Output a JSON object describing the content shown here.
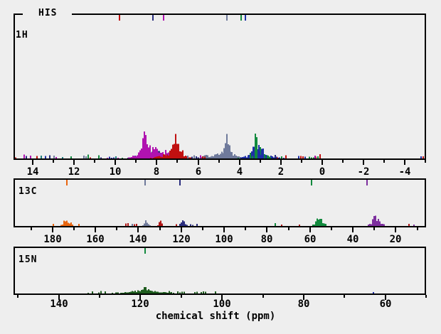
{
  "figure": {
    "title": "HIS",
    "xlabel": "chemical shift (ppm)"
  },
  "colors": {
    "bg": "#eeeeee",
    "axis": "#000000",
    "magenta": "#b012b0",
    "red": "#c01010",
    "red13": "#b01616",
    "navy": "#2a2d7e",
    "blue": "#1e2fa6",
    "slate": "#6f7a9b",
    "green": "#128a3e",
    "dgreen": "#1e5c1e",
    "teal": "#1f7d7d",
    "orange": "#e8650f",
    "purple": "#7d2f9e"
  },
  "chart_data": [
    {
      "type": "histogram",
      "nucleus_label": "1H",
      "x_axis": {
        "range": [
          14.9,
          -5.0
        ],
        "tick_min": -5,
        "tick_max": 14,
        "tick_step": 1,
        "label_step": 2,
        "labels": [
          14,
          12,
          10,
          8,
          6,
          4,
          2,
          0,
          -2,
          -4
        ]
      },
      "avg_markers": [
        {
          "ppm": 9.8,
          "color": "red"
        },
        {
          "ppm": 8.18,
          "color": "navy"
        },
        {
          "ppm": 7.66,
          "color": "magenta"
        },
        {
          "ppm": 4.62,
          "color": "slate"
        },
        {
          "ppm": 3.93,
          "color": "green"
        },
        {
          "ppm": 3.72,
          "color": "blue"
        }
      ],
      "clusters": [
        {
          "color": "navy",
          "center": 8.25,
          "sigma": 0.55,
          "height": 12
        },
        {
          "color": "magenta",
          "center": 8.4,
          "sigma": 0.45,
          "height": 20
        },
        {
          "color": "magenta",
          "center": 8.62,
          "sigma": 0.16,
          "height": 34
        },
        {
          "color": "magenta",
          "center": 8.59,
          "sigma": 0.06,
          "height": 50
        },
        {
          "color": "magenta",
          "center": 7.65,
          "sigma": 0.35,
          "height": 13
        },
        {
          "color": "red",
          "center": 7.35,
          "sigma": 0.55,
          "height": 7
        },
        {
          "color": "red",
          "center": 7.1,
          "sigma": 0.3,
          "height": 22
        },
        {
          "color": "red",
          "center": 7.08,
          "sigma": 0.1,
          "height": 44
        },
        {
          "color": "slate",
          "center": 5.55,
          "sigma": 0.35,
          "height": 5
        },
        {
          "color": "slate",
          "center": 4.7,
          "sigma": 0.4,
          "height": 13
        },
        {
          "color": "slate",
          "center": 4.63,
          "sigma": 0.14,
          "height": 34
        },
        {
          "color": "blue",
          "center": 3.05,
          "sigma": 0.55,
          "height": 8,
          "mix": {
            "color": "green",
            "prob": 0.25,
            "scale": 0.8
          }
        },
        {
          "color": "blue",
          "center": 3.15,
          "sigma": 0.28,
          "height": 22,
          "mix": {
            "color": "green",
            "prob": 0.3,
            "scale": 0.9
          }
        },
        {
          "color": "blue",
          "center": 3.2,
          "sigma": 0.11,
          "height": 42,
          "mix": {
            "color": "green",
            "prob": 0.25,
            "scale": 0.95
          }
        }
      ],
      "noise": [
        {
          "range": [
            14.85,
            9.6
          ],
          "maxh": 4.5,
          "density": 0.42,
          "colors": [
            "navy",
            "blue",
            "red",
            "green",
            "magenta",
            "teal",
            "slate"
          ]
        },
        {
          "range": [
            6.55,
            5.6
          ],
          "maxh": 4,
          "density": 0.5,
          "colors": [
            "slate",
            "red",
            "navy",
            "magenta"
          ]
        },
        {
          "range": [
            2.3,
            0.15
          ],
          "maxh": 4,
          "density": 0.45,
          "colors": [
            "red",
            "magenta",
            "blue",
            "green",
            "navy"
          ]
        }
      ],
      "extra_bars": [
        {
          "ppm": 0.1,
          "h": 6,
          "color": "red"
        },
        {
          "ppm": 0.35,
          "h": 4,
          "color": "magenta"
        },
        {
          "ppm": -4.78,
          "h": 3,
          "color": "blue"
        },
        {
          "ppm": -4.9,
          "h": 3,
          "color": "red"
        }
      ]
    },
    {
      "type": "histogram",
      "nucleus_label": "13C",
      "x_axis": {
        "range": [
          197.8,
          6.2
        ],
        "tick_min": 10,
        "tick_max": 190,
        "tick_step": 10,
        "label_step": 20,
        "labels": [
          180,
          160,
          140,
          120,
          100,
          80,
          60,
          40,
          20
        ]
      },
      "avg_markers": [
        {
          "ppm": 173.4,
          "color": "orange"
        },
        {
          "ppm": 136.9,
          "color": "slate"
        },
        {
          "ppm": 120.4,
          "color": "navy"
        },
        {
          "ppm": 59.1,
          "color": "green"
        },
        {
          "ppm": 33.3,
          "color": "purple"
        }
      ],
      "clusters": [
        {
          "color": "orange",
          "center": 173.6,
          "sigma": 1.5,
          "height": 12
        },
        {
          "color": "slate",
          "center": 136.6,
          "sigma": 1.0,
          "height": 10
        },
        {
          "color": "red13",
          "center": 130.0,
          "sigma": 0.8,
          "height": 8
        },
        {
          "color": "navy",
          "center": 119.6,
          "sigma": 1.1,
          "height": 8
        },
        {
          "color": "green",
          "center": 55.8,
          "sigma": 1.7,
          "height": 13
        },
        {
          "color": "purple",
          "center": 29.6,
          "sigma": 2.0,
          "height": 15
        }
      ],
      "noise": [
        {
          "range": [
            146,
            141
          ],
          "maxh": 3,
          "density": 0.4,
          "colors": [
            "slate",
            "red13"
          ]
        },
        {
          "range": [
            127.5,
            122.5
          ],
          "maxh": 3.5,
          "density": 0.55,
          "colors": [
            "navy",
            "red13"
          ]
        },
        {
          "range": [
            117,
            113
          ],
          "maxh": 2.5,
          "density": 0.35,
          "colors": [
            "navy",
            "red13"
          ]
        }
      ],
      "extra_bars": [
        {
          "ppm": 179.5,
          "h": 3,
          "color": "orange"
        },
        {
          "ppm": 167.5,
          "h": 3,
          "color": "orange"
        },
        {
          "ppm": 76.2,
          "h": 4,
          "color": "green"
        },
        {
          "ppm": 73.2,
          "h": 2,
          "color": "red13"
        },
        {
          "ppm": 65.0,
          "h": 2,
          "color": "red13"
        },
        {
          "ppm": 13.8,
          "h": 3,
          "color": "red13"
        },
        {
          "ppm": 11.5,
          "h": 2,
          "color": "purple"
        }
      ]
    },
    {
      "type": "histogram",
      "nucleus_label": "15N",
      "x_axis": {
        "range": [
          150.9,
          50.2
        ],
        "tick_min": 50,
        "tick_max": 150,
        "tick_step": 10,
        "label_step": 20,
        "labels": [
          140,
          120,
          100,
          80,
          60
        ]
      },
      "avg_markers": [
        {
          "ppm": 118.9,
          "color": "green"
        }
      ],
      "clusters": [
        {
          "color": "dgreen",
          "center": 119.2,
          "sigma": 6.0,
          "height": 2.5
        },
        {
          "color": "dgreen",
          "center": 119.2,
          "sigma": 3.2,
          "height": 5
        },
        {
          "color": "dgreen",
          "center": 119.0,
          "sigma": 1.2,
          "height": 9
        }
      ],
      "noise": [
        {
          "range": [
            133,
            104
          ],
          "maxh": 2.5,
          "density": 0.55,
          "colors": [
            "dgreen"
          ]
        }
      ],
      "extra_bars": [
        {
          "ppm": 101.6,
          "h": 3,
          "color": "dgreen"
        },
        {
          "ppm": 63.0,
          "h": 2,
          "color": "blue"
        }
      ]
    }
  ]
}
